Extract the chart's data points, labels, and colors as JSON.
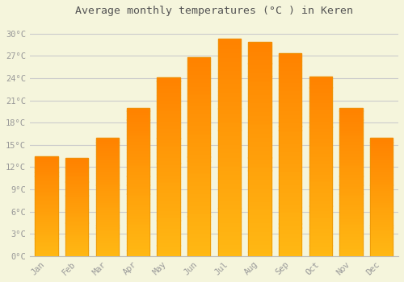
{
  "title": "Average monthly temperatures (°C ) in Keren",
  "months": [
    "Jan",
    "Feb",
    "Mar",
    "Apr",
    "May",
    "Jun",
    "Jul",
    "Aug",
    "Sep",
    "Oct",
    "Nov",
    "Dec"
  ],
  "temperatures": [
    13.5,
    13.2,
    16.0,
    20.0,
    24.1,
    26.8,
    29.3,
    28.9,
    27.4,
    24.2,
    20.0,
    16.0
  ],
  "bar_color": "#FFA820",
  "bar_gradient_top": "#FFAA00",
  "bar_gradient_bottom": "#FFD060",
  "bar_edge_color": "#E8960A",
  "background_color": "#F5F5DC",
  "plot_bg_color": "#F5F5DC",
  "grid_color": "#CCCCCC",
  "yticks": [
    0,
    3,
    6,
    9,
    12,
    15,
    18,
    21,
    24,
    27,
    30
  ],
  "ylim": [
    0,
    31.5
  ],
  "tick_label_color": "#999999",
  "title_color": "#555555",
  "title_fontsize": 9.5,
  "tick_fontsize": 7.5,
  "font_family": "monospace",
  "bar_width": 0.75
}
